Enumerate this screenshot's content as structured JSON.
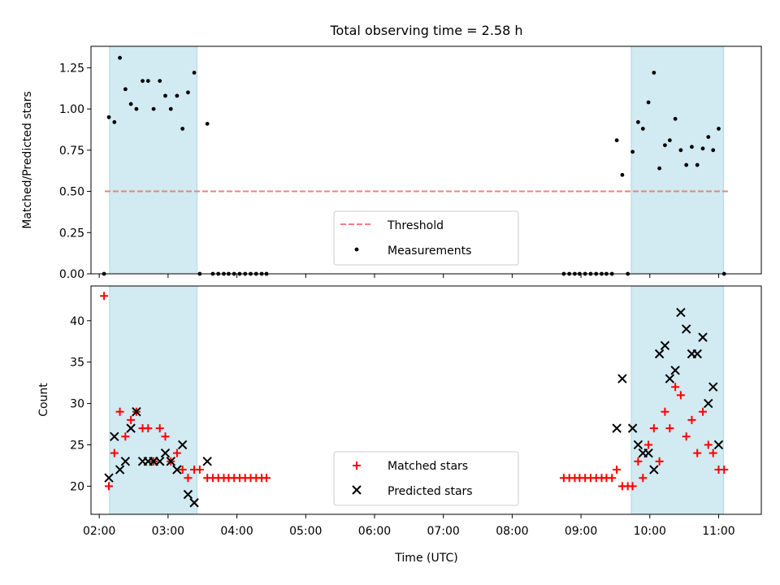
{
  "title": "Total observing time = 2.58 h",
  "colors": {
    "shade": "#add8e6",
    "threshold": "#f08080",
    "matched": "#ff0000",
    "predicted": "#000000",
    "measurements": "#000000"
  },
  "chart_data": [
    {
      "type": "scatter",
      "ylabel": "Matched/Predicted stars",
      "ylim": [
        0,
        1.38
      ],
      "yticks": [
        "0.00",
        "0.25",
        "0.50",
        "0.75",
        "1.00",
        "1.25"
      ],
      "shaded_spans": [
        [
          2.15,
          3.42
        ],
        [
          9.73,
          11.07
        ]
      ],
      "legend": {
        "placement": "lower-center",
        "entries": [
          "Threshold",
          "Measurements"
        ]
      },
      "threshold": {
        "name": "Threshold",
        "x": [
          2.08,
          11.15
        ],
        "y": 0.5,
        "style": "dashed"
      },
      "series": [
        {
          "name": "Measurements",
          "marker": "dot",
          "points": [
            [
              2.07,
              0.0
            ],
            [
              2.14,
              0.95
            ],
            [
              2.22,
              0.92
            ],
            [
              2.3,
              1.31
            ],
            [
              2.38,
              1.12
            ],
            [
              2.46,
              1.03
            ],
            [
              2.54,
              1.0
            ],
            [
              2.63,
              1.17
            ],
            [
              2.71,
              1.17
            ],
            [
              2.79,
              1.0
            ],
            [
              2.88,
              1.17
            ],
            [
              2.96,
              1.08
            ],
            [
              3.04,
              1.0
            ],
            [
              3.13,
              1.08
            ],
            [
              3.21,
              0.88
            ],
            [
              3.29,
              1.1
            ],
            [
              3.38,
              1.22
            ],
            [
              3.46,
              0.0
            ],
            [
              3.57,
              0.91
            ],
            [
              3.65,
              0.0
            ],
            [
              3.73,
              0.0
            ],
            [
              3.81,
              0.0
            ],
            [
              3.88,
              0.0
            ],
            [
              3.96,
              0.0
            ],
            [
              4.04,
              0.0
            ],
            [
              4.12,
              0.0
            ],
            [
              4.2,
              0.0
            ],
            [
              4.28,
              0.0
            ],
            [
              4.36,
              0.0
            ],
            [
              4.43,
              0.0
            ],
            [
              8.75,
              0.0
            ],
            [
              8.83,
              0.0
            ],
            [
              8.91,
              0.0
            ],
            [
              8.98,
              0.0
            ],
            [
              9.06,
              0.0
            ],
            [
              9.14,
              0.0
            ],
            [
              9.22,
              0.0
            ],
            [
              9.3,
              0.0
            ],
            [
              9.37,
              0.0
            ],
            [
              9.45,
              0.0
            ],
            [
              9.52,
              0.81
            ],
            [
              9.6,
              0.6
            ],
            [
              9.68,
              0.0
            ],
            [
              9.75,
              0.74
            ],
            [
              9.83,
              0.92
            ],
            [
              9.9,
              0.88
            ],
            [
              9.98,
              1.04
            ],
            [
              10.06,
              1.22
            ],
            [
              10.14,
              0.64
            ],
            [
              10.22,
              0.78
            ],
            [
              10.29,
              0.81
            ],
            [
              10.37,
              0.94
            ],
            [
              10.45,
              0.75
            ],
            [
              10.53,
              0.66
            ],
            [
              10.61,
              0.77
            ],
            [
              10.69,
              0.66
            ],
            [
              10.77,
              0.76
            ],
            [
              10.85,
              0.83
            ],
            [
              10.92,
              0.75
            ],
            [
              11.0,
              0.88
            ],
            [
              11.08,
              0.0
            ]
          ]
        }
      ]
    },
    {
      "type": "scatter",
      "xlabel": "Time (UTC)",
      "ylabel": "Count",
      "xlim": [
        1.88,
        11.62
      ],
      "ylim": [
        16.6,
        44.2
      ],
      "xticks": [
        "02:00",
        "03:00",
        "04:00",
        "05:00",
        "06:00",
        "07:00",
        "08:00",
        "09:00",
        "10:00",
        "11:00"
      ],
      "yticks": [
        "20",
        "25",
        "30",
        "35",
        "40"
      ],
      "shaded_spans": [
        [
          2.15,
          3.42
        ],
        [
          9.73,
          11.07
        ]
      ],
      "legend": {
        "placement": "lower-center",
        "entries": [
          "Matched stars",
          "Predicted stars"
        ]
      },
      "series": [
        {
          "name": "Matched stars",
          "marker": "plus",
          "points": [
            [
              2.07,
              43
            ],
            [
              2.14,
              20
            ],
            [
              2.22,
              24
            ],
            [
              2.3,
              29
            ],
            [
              2.38,
              26
            ],
            [
              2.46,
              28
            ],
            [
              2.54,
              29
            ],
            [
              2.63,
              27
            ],
            [
              2.71,
              27
            ],
            [
              2.79,
              23
            ],
            [
              2.88,
              27
            ],
            [
              2.96,
              26
            ],
            [
              3.04,
              23
            ],
            [
              3.13,
              24
            ],
            [
              3.21,
              22
            ],
            [
              3.29,
              21
            ],
            [
              3.38,
              22
            ],
            [
              3.46,
              22
            ],
            [
              3.57,
              21
            ],
            [
              3.65,
              21
            ],
            [
              3.73,
              21
            ],
            [
              3.81,
              21
            ],
            [
              3.88,
              21
            ],
            [
              3.96,
              21
            ],
            [
              4.04,
              21
            ],
            [
              4.12,
              21
            ],
            [
              4.2,
              21
            ],
            [
              4.28,
              21
            ],
            [
              4.36,
              21
            ],
            [
              4.43,
              21
            ],
            [
              8.75,
              21
            ],
            [
              8.83,
              21
            ],
            [
              8.91,
              21
            ],
            [
              8.98,
              21
            ],
            [
              9.06,
              21
            ],
            [
              9.14,
              21
            ],
            [
              9.22,
              21
            ],
            [
              9.3,
              21
            ],
            [
              9.37,
              21
            ],
            [
              9.45,
              21
            ],
            [
              9.52,
              22
            ],
            [
              9.6,
              20
            ],
            [
              9.68,
              20
            ],
            [
              9.75,
              20
            ],
            [
              9.83,
              23
            ],
            [
              9.9,
              21
            ],
            [
              9.98,
              25
            ],
            [
              10.06,
              27
            ],
            [
              10.14,
              23
            ],
            [
              10.22,
              29
            ],
            [
              10.29,
              27
            ],
            [
              10.37,
              32
            ],
            [
              10.45,
              31
            ],
            [
              10.53,
              26
            ],
            [
              10.61,
              28
            ],
            [
              10.69,
              24
            ],
            [
              10.77,
              29
            ],
            [
              10.85,
              25
            ],
            [
              10.92,
              24
            ],
            [
              11.0,
              22
            ],
            [
              11.08,
              22
            ]
          ]
        },
        {
          "name": "Predicted stars",
          "marker": "x",
          "points": [
            [
              2.14,
              21
            ],
            [
              2.22,
              26
            ],
            [
              2.3,
              22
            ],
            [
              2.38,
              23
            ],
            [
              2.46,
              27
            ],
            [
              2.54,
              29
            ],
            [
              2.63,
              23
            ],
            [
              2.71,
              23
            ],
            [
              2.79,
              23
            ],
            [
              2.88,
              23
            ],
            [
              2.96,
              24
            ],
            [
              3.04,
              23
            ],
            [
              3.13,
              22
            ],
            [
              3.21,
              25
            ],
            [
              3.29,
              19
            ],
            [
              3.38,
              18
            ],
            [
              3.57,
              23
            ],
            [
              9.52,
              27
            ],
            [
              9.6,
              33
            ],
            [
              9.75,
              27
            ],
            [
              9.83,
              25
            ],
            [
              9.9,
              24
            ],
            [
              9.98,
              24
            ],
            [
              10.06,
              22
            ],
            [
              10.14,
              36
            ],
            [
              10.22,
              37
            ],
            [
              10.29,
              33
            ],
            [
              10.37,
              34
            ],
            [
              10.45,
              41
            ],
            [
              10.53,
              39
            ],
            [
              10.61,
              36
            ],
            [
              10.69,
              36
            ],
            [
              10.77,
              38
            ],
            [
              10.85,
              30
            ],
            [
              10.92,
              32
            ],
            [
              11.0,
              25
            ]
          ]
        }
      ]
    }
  ]
}
